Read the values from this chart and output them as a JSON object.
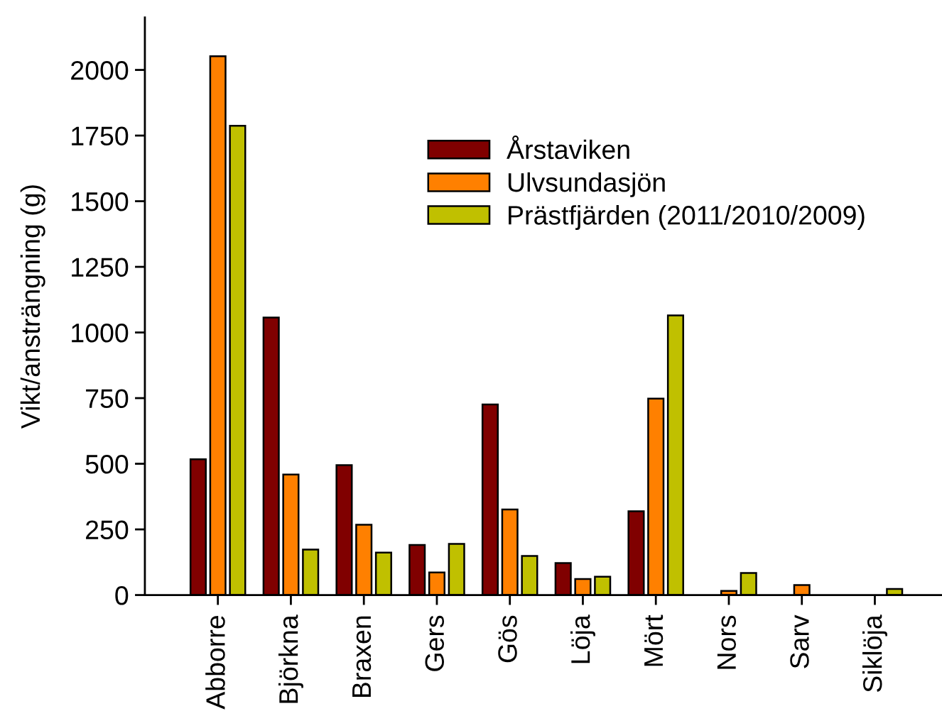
{
  "chart_data": {
    "type": "bar",
    "ylabel": "Vikt/ansträngning (g)",
    "categories": [
      "Abborre",
      "Björkna",
      "Braxen",
      "Gers",
      "Gös",
      "Löja",
      "Mört",
      "Nors",
      "Sarv",
      "Siklöja"
    ],
    "series": [
      {
        "name": "Årstaviken",
        "color": "#800000",
        "values": [
          517,
          1057,
          495,
          191,
          726,
          122,
          319,
          null,
          null,
          null
        ]
      },
      {
        "name": "Ulvsundasjön",
        "color": "#ff8000",
        "values": [
          2052,
          459,
          268,
          86,
          326,
          61,
          748,
          16,
          38,
          null
        ]
      },
      {
        "name": "Prästfjärden (2011/2010/2009)",
        "color": "#c0c000",
        "values": [
          1787,
          173,
          162,
          195,
          149,
          70,
          1065,
          84,
          null,
          23
        ]
      }
    ],
    "ylim": [
      0,
      2200
    ],
    "yticks": [
      0,
      250,
      500,
      750,
      1000,
      1250,
      1500,
      1750,
      2000
    ],
    "legend": "top"
  }
}
